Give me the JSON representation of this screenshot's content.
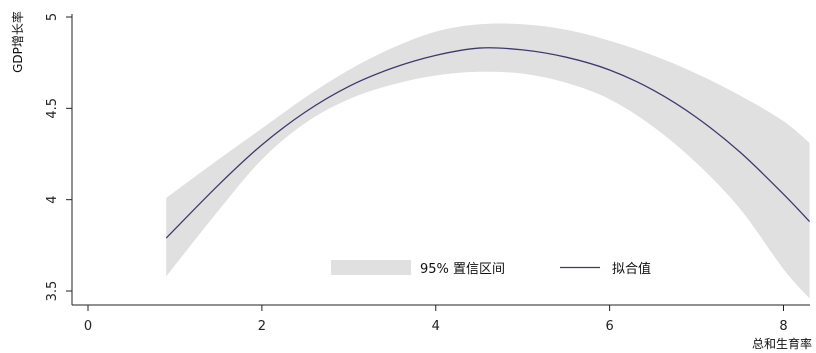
{
  "chart_data": {
    "type": "line",
    "xlabel": "总和生育率",
    "ylabel": "GDP增长率",
    "xlim": [
      0,
      8.3
    ],
    "ylim": [
      3.42,
      5.05
    ],
    "x_ticks": [
      "0",
      "2",
      "4",
      "6",
      "8"
    ],
    "y_ticks": [
      "3.5",
      "4",
      "4.5",
      "5"
    ],
    "grid": false,
    "legend_position": "bottom-right-inside",
    "series": [
      {
        "name": "拟合值",
        "kind": "line",
        "color": "#3c3a6e",
        "x": [
          0.9,
          1.5,
          2.0,
          2.5,
          3.0,
          3.5,
          4.0,
          4.5,
          5.0,
          5.5,
          6.0,
          6.5,
          7.0,
          7.5,
          8.0,
          8.3
        ],
        "y": [
          3.79,
          4.08,
          4.3,
          4.48,
          4.62,
          4.72,
          4.79,
          4.83,
          4.82,
          4.78,
          4.71,
          4.6,
          4.45,
          4.26,
          4.03,
          3.88
        ]
      },
      {
        "name": "95% 置信区间",
        "kind": "band",
        "color": "#e0e0e0",
        "x": [
          0.9,
          1.5,
          2.0,
          2.5,
          3.0,
          3.5,
          4.0,
          4.5,
          5.0,
          5.5,
          6.0,
          6.5,
          7.0,
          7.5,
          8.0,
          8.3
        ],
        "lower": [
          3.58,
          3.94,
          4.22,
          4.42,
          4.55,
          4.63,
          4.68,
          4.7,
          4.69,
          4.64,
          4.55,
          4.4,
          4.2,
          3.95,
          3.62,
          3.46
        ],
        "upper": [
          4.01,
          4.22,
          4.39,
          4.56,
          4.71,
          4.83,
          4.92,
          4.96,
          4.96,
          4.93,
          4.87,
          4.79,
          4.69,
          4.57,
          4.43,
          4.31
        ]
      }
    ],
    "legend": [
      {
        "label": "95% 置信区间",
        "symbol": "band",
        "color": "#e0e0e0"
      },
      {
        "label": "拟合值",
        "symbol": "line",
        "color": "#3c3a6e"
      }
    ]
  }
}
